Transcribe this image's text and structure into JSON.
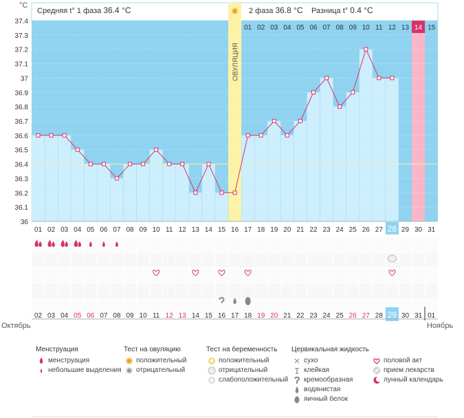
{
  "header": {
    "phase1_label": "Средняя t° 1 фаза",
    "phase1_value": "36.4 °C",
    "phase2_label": "2 фаза",
    "phase2_value": "36.8 °C",
    "diff_label": "Разница t°",
    "diff_value": "0.4 °C"
  },
  "ovulation_label": "ОВУЛЯЦИЯ",
  "unit_label": "°C",
  "months": {
    "left": "Октябрь",
    "right": "Ноябрь"
  },
  "colors": {
    "sky": "#8fd3f0",
    "bar_fill": "#cdeefc",
    "line": "#d6336c",
    "ovulation": "#fdf3a6",
    "highlight_pink": "#f9b6c8",
    "today": "#8fd3f0",
    "weekend_red": "#d6336c"
  },
  "chart_data": {
    "type": "line",
    "ylim": [
      36.0,
      37.4
    ],
    "yticks": [
      "37.4",
      "37.3",
      "37.2",
      "37.1",
      "37",
      "36.9",
      "36.8",
      "36.7",
      "36.6",
      "36.5",
      "36.4",
      "36.3",
      "36.2",
      "36.1",
      "36"
    ],
    "cycle_days": [
      "01",
      "02",
      "03",
      "04",
      "05",
      "06",
      "07",
      "08",
      "09",
      "10",
      "11",
      "12",
      "13",
      "14",
      "15",
      "16",
      "17",
      "18",
      "19",
      "20",
      "21",
      "22",
      "23",
      "24",
      "25",
      "26",
      "27",
      "28",
      "29",
      "30",
      "31"
    ],
    "calendar_dates": [
      "02",
      "03",
      "04",
      "05",
      "06",
      "07",
      "08",
      "09",
      "10",
      "11",
      "12",
      "13",
      "14",
      "15",
      "16",
      "17",
      "18",
      "19",
      "20",
      "21",
      "22",
      "23",
      "24",
      "25",
      "26",
      "27",
      "28",
      "29",
      "30",
      "31",
      "01"
    ],
    "red_dates_index": [
      3,
      4,
      10,
      11,
      17,
      18,
      24,
      25
    ],
    "today_cycle_index": 27,
    "ovulation_index": 15,
    "post_ovulation_days": [
      "01",
      "02",
      "03",
      "04",
      "05",
      "06",
      "07",
      "08",
      "09",
      "10",
      "11",
      "12",
      "13",
      "14",
      "15"
    ],
    "temperatures": [
      36.6,
      36.6,
      36.6,
      36.5,
      36.4,
      36.4,
      36.3,
      36.4,
      36.4,
      36.5,
      36.4,
      36.4,
      36.2,
      36.4,
      36.2,
      36.2,
      36.6,
      36.6,
      36.7,
      36.6,
      36.7,
      36.9,
      37.0,
      36.8,
      36.9,
      37.2,
      37.0,
      37.0
    ],
    "coverline": 36.4,
    "menstruation": [
      "heavy",
      "heavy",
      "heavy",
      "heavy",
      "light",
      "light",
      "light"
    ],
    "intercourse_days": [
      10,
      13,
      15,
      17,
      28
    ],
    "pregnancy_test_day": 28,
    "fluid_marks": [
      {
        "day": 15,
        "type": "cream"
      },
      {
        "day": 16,
        "type": "watery"
      },
      {
        "day": 17,
        "type": "eggwhite"
      }
    ]
  },
  "legend": {
    "menstruation": {
      "title": "Менструация",
      "items": [
        "менструация",
        "небольшие выделения"
      ]
    },
    "ovulation_test": {
      "title": "Тест на овуляцию",
      "items": [
        "положительный",
        "отрицательный"
      ]
    },
    "pregnancy_test": {
      "title": "Тест на беременность",
      "items": [
        "положительный",
        "отрицательный",
        "слабоположительный"
      ]
    },
    "cervical": {
      "title": "Цервикальная жидкость",
      "items": [
        "сухо",
        "клейкая",
        "кремообразная",
        "водянистая",
        "яичный белок"
      ]
    },
    "other": {
      "items": [
        "половой акт",
        "прием лекарств",
        "лунный календарь"
      ]
    }
  }
}
